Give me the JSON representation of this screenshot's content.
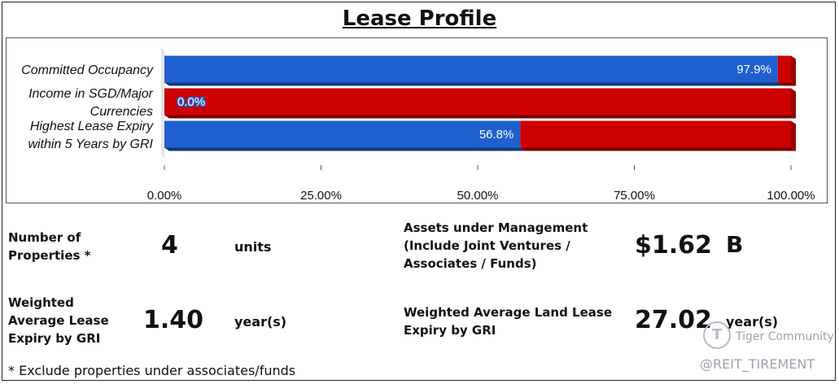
{
  "title": "Lease Profile",
  "chart_data": {
    "type": "bar",
    "orientation": "horizontal",
    "stacked": true,
    "categories": [
      [
        "Committed Occupancy"
      ],
      [
        "Income in SGD/Major",
        "Currencies"
      ],
      [
        "Highest Lease Expiry",
        "within 5 Years by GRI"
      ]
    ],
    "series": [
      {
        "values": [
          97.9,
          0.0,
          56.8
        ],
        "color": "#1f5fcf"
      },
      {
        "values": [
          2.1,
          100.0,
          43.2
        ],
        "color": "#cc0000"
      }
    ],
    "data_labels": [
      "97.9%",
      "0.0%",
      "56.8%"
    ],
    "x_ticks": [
      "0.00%",
      "25.00%",
      "50.00%",
      "75.00%",
      "100.00%"
    ],
    "xlim": [
      0,
      100
    ],
    "grid": false
  },
  "stats": {
    "num_properties": {
      "label_lines": [
        "Number of",
        "Properties *"
      ],
      "value": "4",
      "unit": "units"
    },
    "aum": {
      "label_lines": [
        "Assets under Management",
        "(Include Joint Ventures /",
        "Associates / Funds)"
      ],
      "value": "$1.62",
      "unit": "B"
    },
    "wale": {
      "label_lines": [
        "Weighted",
        "Average Lease",
        "Expiry by GRI"
      ],
      "value": "1.40",
      "unit": "year(s)"
    },
    "walle": {
      "label_lines": [
        "Weighted Average Land Lease",
        "Expiry by GRI"
      ],
      "value": "27.02",
      "unit": "year(s)"
    }
  },
  "footnote": "* Exclude properties under associates/funds",
  "watermark": {
    "brand": "Tiger Community",
    "handle": "@REIT_TIREMENT",
    "logo_icon": "tiger-logo-icon"
  }
}
